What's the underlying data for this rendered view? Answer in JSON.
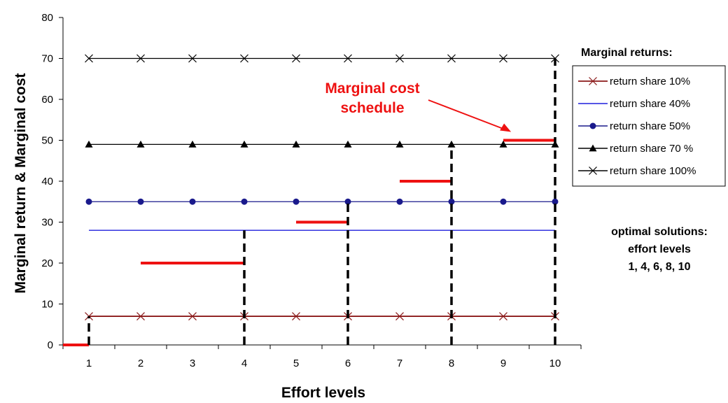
{
  "chart_data": {
    "type": "line",
    "title": "",
    "xlabel": "Effort levels",
    "ylabel": "Marginal return & Marginal cost",
    "x": [
      1,
      2,
      3,
      4,
      5,
      6,
      7,
      8,
      9,
      10
    ],
    "xlim": [
      0.5,
      10.5
    ],
    "ylim": [
      0,
      80
    ],
    "yticks": [
      0,
      10,
      20,
      30,
      40,
      50,
      60,
      70,
      80
    ],
    "grid": false,
    "legend_title": "Marginal returns:",
    "legend_position": "right",
    "series": [
      {
        "name": "return share 10%",
        "color": "#8b1a1a",
        "marker": "x-icon",
        "values": [
          7,
          7,
          7,
          7,
          7,
          7,
          7,
          7,
          7,
          7
        ]
      },
      {
        "name": "return share 40%",
        "color": "#1f1fdd",
        "marker": "none",
        "values": [
          28,
          28,
          28,
          28,
          28,
          28,
          28,
          28,
          28,
          28
        ]
      },
      {
        "name": "return share 50%",
        "color": "#1a1a8c",
        "marker": "circle-icon",
        "values": [
          35,
          35,
          35,
          35,
          35,
          35,
          35,
          35,
          35,
          35
        ]
      },
      {
        "name": "return share 70 %",
        "color": "#000000",
        "marker": "triangle-icon",
        "values": [
          49,
          49,
          49,
          49,
          49,
          49,
          49,
          49,
          49,
          49
        ]
      },
      {
        "name": "return share 100%",
        "color": "#000000",
        "marker": "x-icon",
        "values": [
          70,
          70,
          70,
          70,
          70,
          70,
          70,
          70,
          70,
          70
        ]
      }
    ],
    "cost_schedule": {
      "color": "#ee1111",
      "segments": [
        {
          "x": [
            0.5,
            1
          ],
          "y": 0
        },
        {
          "x": [
            2,
            4
          ],
          "y": 20
        },
        {
          "x": [
            5,
            6
          ],
          "y": 30
        },
        {
          "x": [
            7,
            8
          ],
          "y": 40
        },
        {
          "x": [
            9,
            10
          ],
          "y": 50
        }
      ]
    },
    "optimal_markers": [
      {
        "x": 1,
        "y": 7
      },
      {
        "x": 4,
        "y": 28
      },
      {
        "x": 6,
        "y": 35
      },
      {
        "x": 8,
        "y": 49
      },
      {
        "x": 10,
        "y": 70
      }
    ],
    "annotations": {
      "cost_label_lines": [
        "Marginal cost",
        "schedule"
      ],
      "optimal_lines": [
        "optimal solutions:",
        "effort levels",
        "1, 4, 6, 8, 10"
      ]
    }
  }
}
